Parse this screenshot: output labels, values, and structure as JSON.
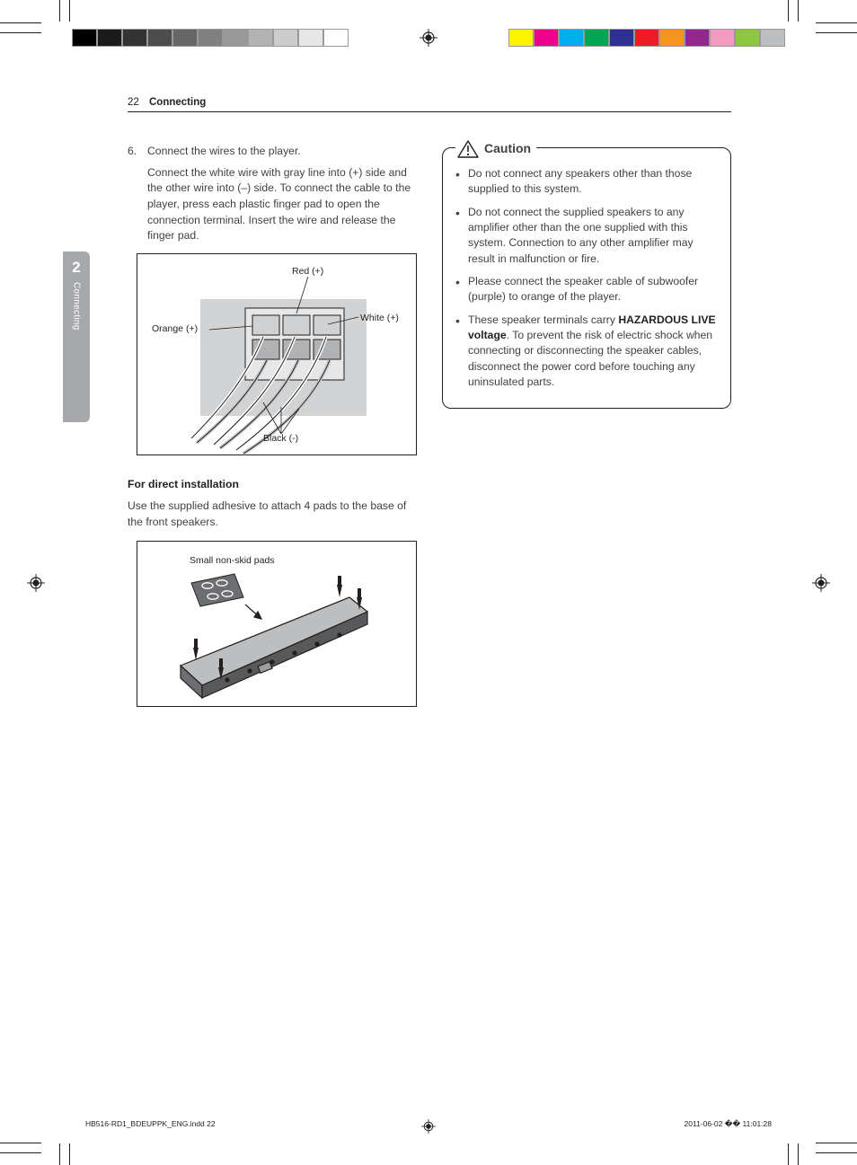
{
  "printer_bars": {
    "grayscale": [
      "#000000",
      "#1a1a1a",
      "#333333",
      "#4d4d4d",
      "#666666",
      "#808080",
      "#999999",
      "#b3b3b3",
      "#cccccc",
      "#e6e6e6",
      "#ffffff"
    ],
    "color": [
      "#fff200",
      "#ec008c",
      "#00aeef",
      "#00a651",
      "#2e3192",
      "#ed1c24",
      "#f7941d",
      "#92278f",
      "#f49ac1",
      "#8dc63f",
      "#bcbec0"
    ]
  },
  "header": {
    "page_num": "22",
    "section": "Connecting"
  },
  "side_tab": {
    "num": "2",
    "label": "Connecting"
  },
  "step6": {
    "num": "6.",
    "title": "Connect the wires to the player.",
    "detail": "Connect the white wire with gray line into (+) side and the other wire into (–) side. To connect the cable to the player, press each plastic finger pad to open the connection terminal. Insert the wire and release the finger pad."
  },
  "fig1_labels": {
    "red": "Red (+)",
    "white": "White (+)",
    "orange": "Orange (+)",
    "black": "Black (-)"
  },
  "direct_install": {
    "heading": "For direct installation",
    "text": "Use the supplied adhesive to attach 4 pads to the base of the front speakers."
  },
  "fig2_labels": {
    "pads": "Small non-skid pads"
  },
  "caution": {
    "title": "Caution",
    "items": [
      "Do not connect any speakers other than those supplied to this system.",
      "Do not connect the supplied speakers to any amplifier other than the one supplied with this system. Connection to any other amplifier may result in malfunction or fire.",
      "Please connect the speaker cable of subwoofer (purple) to orange of the player.",
      "These speaker terminals carry <strong>HAZARDOUS LIVE voltage</strong>. To prevent the risk of electric shock when connecting or disconnecting the speaker cables, disconnect the power cord before touching any uninsulated parts."
    ]
  },
  "footer": {
    "left": "HB516-RD1_BDEUPPK_ENG.indd   22",
    "right": "2011-06-02   �� 11:01:28"
  }
}
